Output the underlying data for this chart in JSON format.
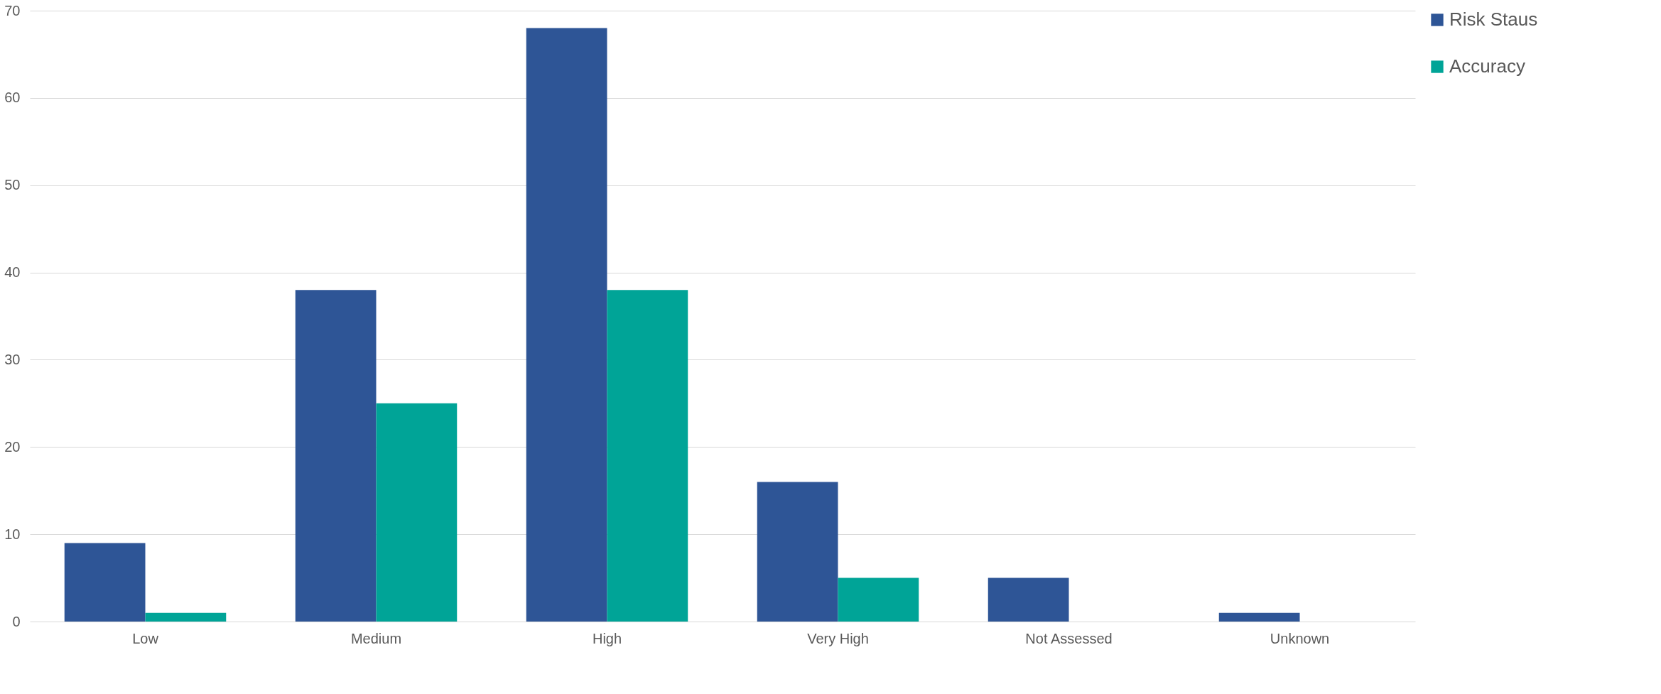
{
  "chart_data": {
    "type": "bar",
    "categories": [
      "Low",
      "Medium",
      "High",
      "Very High",
      "Not Assessed",
      "Unknown"
    ],
    "series": [
      {
        "name": "Risk Staus",
        "color": "#2e5596",
        "values": [
          9,
          38,
          68,
          16,
          5,
          1
        ]
      },
      {
        "name": "Accuracy",
        "color": "#00a497",
        "values": [
          1,
          25,
          38,
          5,
          0,
          0
        ]
      }
    ],
    "ylim": [
      0,
      70
    ],
    "yticks": [
      0,
      10,
      20,
      30,
      40,
      50,
      60,
      70
    ],
    "grid": "y",
    "legend": "right"
  }
}
